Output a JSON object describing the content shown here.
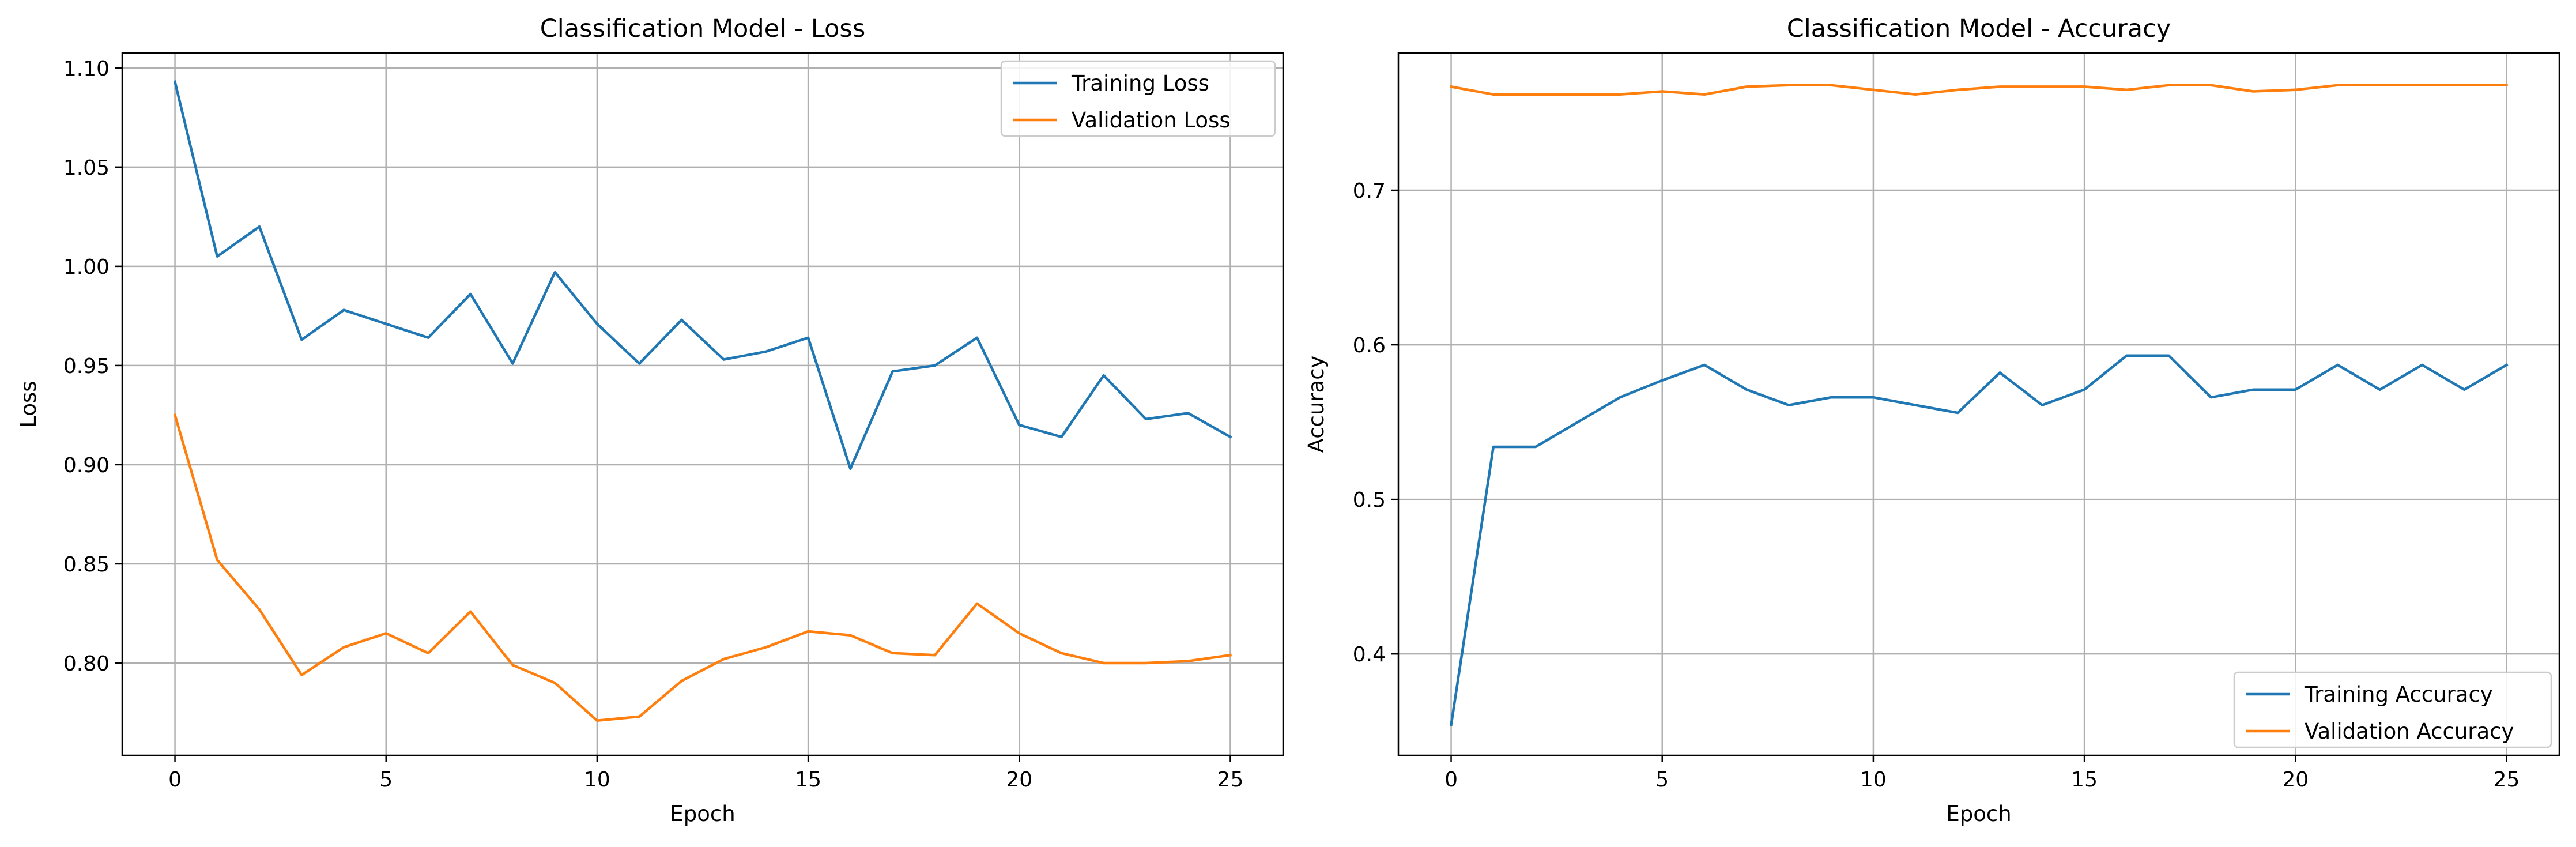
{
  "colors": {
    "training": "#1f77b4",
    "validation": "#ff7f0e",
    "grid": "#b0b0b0"
  },
  "chart_data": [
    {
      "type": "line",
      "title": "Classification Model - Loss",
      "xlabel": "Epoch",
      "ylabel": "Loss",
      "xlim": [
        -1.25,
        26.25
      ],
      "ylim": [
        0.7535,
        1.1075
      ],
      "xticks": [
        0,
        5,
        10,
        15,
        20,
        25
      ],
      "yticks": [
        0.8,
        0.85,
        0.9,
        0.95,
        1.0,
        1.05,
        1.1
      ],
      "ytick_labels": [
        "0.80",
        "0.85",
        "0.90",
        "0.95",
        "1.00",
        "1.05",
        "1.10"
      ],
      "grid": true,
      "legend_position": "top-right",
      "x": [
        0,
        1,
        2,
        3,
        4,
        5,
        6,
        7,
        8,
        9,
        10,
        11,
        12,
        13,
        14,
        15,
        16,
        17,
        18,
        19,
        20,
        21,
        22,
        23,
        24,
        25
      ],
      "series": [
        {
          "name": "Training Loss",
          "color_key": "training",
          "values": [
            1.093,
            1.005,
            1.02,
            0.963,
            0.978,
            0.971,
            0.964,
            0.986,
            0.951,
            0.997,
            0.971,
            0.951,
            0.973,
            0.953,
            0.957,
            0.964,
            0.898,
            0.947,
            0.95,
            0.964,
            0.92,
            0.914,
            0.945,
            0.923,
            0.926,
            0.914
          ]
        },
        {
          "name": "Validation Loss",
          "color_key": "validation",
          "values": [
            0.925,
            0.852,
            0.827,
            0.794,
            0.808,
            0.815,
            0.805,
            0.826,
            0.799,
            0.79,
            0.771,
            0.773,
            0.791,
            0.802,
            0.808,
            0.816,
            0.814,
            0.805,
            0.804,
            0.83,
            0.815,
            0.805,
            0.8,
            0.8,
            0.801,
            0.804
          ]
        }
      ]
    },
    {
      "type": "line",
      "title": "Classification Model - Accuracy",
      "xlabel": "Epoch",
      "ylabel": "Accuracy",
      "xlim": [
        -1.25,
        26.25
      ],
      "ylim": [
        0.3344,
        0.7888
      ],
      "xticks": [
        0,
        5,
        10,
        15,
        20,
        25
      ],
      "yticks": [
        0.4,
        0.5,
        0.6,
        0.7
      ],
      "ytick_labels": [
        "0.4",
        "0.5",
        "0.6",
        "0.7"
      ],
      "grid": true,
      "legend_position": "bottom-right",
      "x": [
        0,
        1,
        2,
        3,
        4,
        5,
        6,
        7,
        8,
        9,
        10,
        11,
        12,
        13,
        14,
        15,
        16,
        17,
        18,
        19,
        20,
        21,
        22,
        23,
        24,
        25
      ],
      "series": [
        {
          "name": "Training Accuracy",
          "color_key": "training",
          "values": [
            0.354,
            0.534,
            0.534,
            0.55,
            0.566,
            0.577,
            0.587,
            0.571,
            0.561,
            0.566,
            0.566,
            0.561,
            0.556,
            0.582,
            0.561,
            0.571,
            0.593,
            0.593,
            0.566,
            0.571,
            0.571,
            0.587,
            0.571,
            0.587,
            0.571,
            0.587
          ]
        },
        {
          "name": "Validation Accuracy",
          "color_key": "validation",
          "values": [
            0.767,
            0.762,
            0.762,
            0.762,
            0.762,
            0.764,
            0.762,
            0.767,
            0.768,
            0.768,
            0.765,
            0.762,
            0.765,
            0.767,
            0.767,
            0.767,
            0.765,
            0.768,
            0.768,
            0.764,
            0.765,
            0.768,
            0.768,
            0.768,
            0.768,
            0.768
          ]
        }
      ]
    }
  ]
}
